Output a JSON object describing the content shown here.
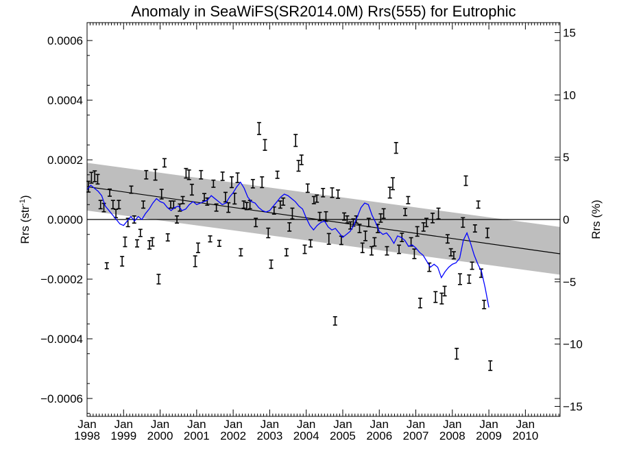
{
  "chart_data": {
    "type": "scatter",
    "title": "Anomaly in SeaWiFS(SR2014.0M) Rrs(555) for Eutrophic",
    "ylabel_left_main": "Rrs (str",
    "ylabel_left_sup": "-1",
    "ylabel_left_close": ")",
    "ylabel_right": "Rrs (%)",
    "xlim": [
      1998.0,
      2010.95
    ],
    "ylim": [
      -0.00066,
      0.00066
    ],
    "ylim_right": [
      -15.8,
      15.8
    ],
    "y_ticks": [
      {
        "value": 0.0006,
        "label": "0.0006"
      },
      {
        "value": 0.0004,
        "label": "0.0004"
      },
      {
        "value": 0.0002,
        "label": "0.0002"
      },
      {
        "value": 0.0,
        "label": "0.0000"
      },
      {
        "value": -0.0002,
        "label": "−0.0002"
      },
      {
        "value": -0.0004,
        "label": "−0.0004"
      },
      {
        "value": -0.0006,
        "label": "−0.0006"
      }
    ],
    "y_right_ticks": [
      {
        "value": 15,
        "label": "15"
      },
      {
        "value": 10,
        "label": "10"
      },
      {
        "value": 5,
        "label": "5"
      },
      {
        "value": 0,
        "label": "0"
      },
      {
        "value": -5,
        "label": "−5"
      },
      {
        "value": -10,
        "label": "−10"
      },
      {
        "value": -15,
        "label": "−15"
      }
    ],
    "x_ticks": [
      {
        "value": 1998,
        "month": "Jan",
        "year": "1998"
      },
      {
        "value": 1999,
        "month": "Jan",
        "year": "1999"
      },
      {
        "value": 2000,
        "month": "Jan",
        "year": "2000"
      },
      {
        "value": 2001,
        "month": "Jan",
        "year": "2001"
      },
      {
        "value": 2002,
        "month": "Jan",
        "year": "2002"
      },
      {
        "value": 2003,
        "month": "Jan",
        "year": "2003"
      },
      {
        "value": 2004,
        "month": "Jan",
        "year": "2004"
      },
      {
        "value": 2005,
        "month": "Jan",
        "year": "2005"
      },
      {
        "value": 2006,
        "month": "Jan",
        "year": "2006"
      },
      {
        "value": 2007,
        "month": "Jan",
        "year": "2007"
      },
      {
        "value": 2008,
        "month": "Jan",
        "year": "2008"
      },
      {
        "value": 2009,
        "month": "Jan",
        "year": "2009"
      },
      {
        "value": 2010,
        "month": "Jan",
        "year": "2010"
      }
    ],
    "reference_line": 0.0,
    "trend_line": {
      "x": [
        1998.0,
        2010.95
      ],
      "y": [
        0.00011,
        -0.000115
      ]
    },
    "confidence_band": {
      "x": [
        1998.0,
        2010.95
      ],
      "upper": [
        0.00019,
        -2.5e-05
      ],
      "lower": [
        3e-05,
        -0.000185
      ]
    },
    "points": [
      {
        "x": 1998.04,
        "y": 0.00011,
        "err": 1.8e-05
      },
      {
        "x": 1998.12,
        "y": 0.00014,
        "err": 1.8e-05
      },
      {
        "x": 1998.21,
        "y": 0.000145,
        "err": 1.8e-05
      },
      {
        "x": 1998.29,
        "y": 0.000135,
        "err": 1.6e-05
      },
      {
        "x": 1998.37,
        "y": 5e-05,
        "err": 1.4e-05
      },
      {
        "x": 1998.46,
        "y": 4e-05,
        "err": 1.4e-05
      },
      {
        "x": 1998.54,
        "y": -0.000155,
        "err": 1e-05
      },
      {
        "x": 1998.62,
        "y": 9e-05,
        "err": 1.2e-05
      },
      {
        "x": 1998.71,
        "y": 5e-05,
        "err": 1.4e-05
      },
      {
        "x": 1998.79,
        "y": 2e-05,
        "err": 1.4e-05
      },
      {
        "x": 1998.87,
        "y": 5e-05,
        "err": 1.4e-05
      },
      {
        "x": 1998.96,
        "y": -0.00014,
        "err": 1.6e-05
      },
      {
        "x": 1999.04,
        "y": -7.5e-05,
        "err": 1.6e-05
      },
      {
        "x": 1999.12,
        "y": -1e-05,
        "err": 1.4e-05
      },
      {
        "x": 1999.21,
        "y": 0.0001,
        "err": 1.2e-05
      },
      {
        "x": 1999.29,
        "y": 0.0,
        "err": 1.2e-05
      },
      {
        "x": 1999.37,
        "y": -8e-05,
        "err": 1.2e-05
      },
      {
        "x": 1999.46,
        "y": -4.5e-05,
        "err": 1.2e-05
      },
      {
        "x": 1999.54,
        "y": 5e-05,
        "err": 1.2e-05
      },
      {
        "x": 1999.62,
        "y": 0.00015,
        "err": 1.4e-05
      },
      {
        "x": 1999.71,
        "y": -8.5e-05,
        "err": 1.4e-05
      },
      {
        "x": 1999.79,
        "y": -7.5e-05,
        "err": 1.4e-05
      },
      {
        "x": 1999.87,
        "y": 0.00015,
        "err": 1.8e-05
      },
      {
        "x": 1999.96,
        "y": -0.0002,
        "err": 1.6e-05
      },
      {
        "x": 2000.04,
        "y": 8.5e-05,
        "err": 1.6e-05
      },
      {
        "x": 2000.12,
        "y": 0.00019,
        "err": 1.4e-05
      },
      {
        "x": 2000.21,
        "y": -6e-05,
        "err": 1.2e-05
      },
      {
        "x": 2000.29,
        "y": 5e-05,
        "err": 1.2e-05
      },
      {
        "x": 2000.37,
        "y": 5e-05,
        "err": 1.2e-05
      },
      {
        "x": 2000.46,
        "y": 0.0,
        "err": 1.2e-05
      },
      {
        "x": 2000.54,
        "y": 4e-05,
        "err": 1.2e-05
      },
      {
        "x": 2000.62,
        "y": 6.5e-05,
        "err": 1.2e-05
      },
      {
        "x": 2000.71,
        "y": 0.000155,
        "err": 1.6e-05
      },
      {
        "x": 2000.79,
        "y": 0.00015,
        "err": 1.6e-05
      },
      {
        "x": 2000.87,
        "y": 0.0001,
        "err": 1.8e-05
      },
      {
        "x": 2000.96,
        "y": -0.00014,
        "err": 1.8e-05
      },
      {
        "x": 2001.04,
        "y": -9.5e-05,
        "err": 1.6e-05
      },
      {
        "x": 2001.12,
        "y": 0.00015,
        "err": 1.4e-05
      },
      {
        "x": 2001.21,
        "y": 7.5e-05,
        "err": 1.2e-05
      },
      {
        "x": 2001.29,
        "y": 6e-05,
        "err": 1.2e-05
      },
      {
        "x": 2001.37,
        "y": -6.5e-05,
        "err": 1e-05
      },
      {
        "x": 2001.46,
        "y": 0.00012,
        "err": 1.2e-05
      },
      {
        "x": 2001.54,
        "y": 4e-05,
        "err": 1.2e-05
      },
      {
        "x": 2001.62,
        "y": -8e-05,
        "err": 1e-05
      },
      {
        "x": 2001.71,
        "y": 0.000145,
        "err": 1.4e-05
      },
      {
        "x": 2001.79,
        "y": 7.5e-05,
        "err": 1.6e-05
      },
      {
        "x": 2001.87,
        "y": 4e-05,
        "err": 1.6e-05
      },
      {
        "x": 2001.96,
        "y": 0.000125,
        "err": 1.8e-05
      },
      {
        "x": 2002.04,
        "y": 7e-05,
        "err": 1.8e-05
      },
      {
        "x": 2002.12,
        "y": 0.00014,
        "err": 1.6e-05
      },
      {
        "x": 2002.21,
        "y": -0.00011,
        "err": 1.2e-05
      },
      {
        "x": 2002.29,
        "y": 5e-05,
        "err": 1.2e-05
      },
      {
        "x": 2002.37,
        "y": 4.5e-05,
        "err": 1.2e-05
      },
      {
        "x": 2002.46,
        "y": 5e-05,
        "err": 1.4e-05
      },
      {
        "x": 2002.54,
        "y": 0.00012,
        "err": 1.4e-05
      },
      {
        "x": 2002.62,
        "y": -1e-05,
        "err": 1.4e-05
      },
      {
        "x": 2002.71,
        "y": 0.000305,
        "err": 2e-05
      },
      {
        "x": 2002.79,
        "y": 0.000125,
        "err": 1.8e-05
      },
      {
        "x": 2002.87,
        "y": 0.00025,
        "err": 1.8e-05
      },
      {
        "x": 2002.96,
        "y": -4.5e-05,
        "err": 1.6e-05
      },
      {
        "x": 2003.04,
        "y": -0.00015,
        "err": 1.4e-05
      },
      {
        "x": 2003.12,
        "y": 3e-05,
        "err": 1.2e-05
      },
      {
        "x": 2003.21,
        "y": 0.00015,
        "err": 1.2e-05
      },
      {
        "x": 2003.29,
        "y": 5e-05,
        "err": 1.2e-05
      },
      {
        "x": 2003.37,
        "y": 6e-05,
        "err": 1.2e-05
      },
      {
        "x": 2003.46,
        "y": -0.00011,
        "err": 1.2e-05
      },
      {
        "x": 2003.54,
        "y": -2.5e-05,
        "err": 1.4e-05
      },
      {
        "x": 2003.62,
        "y": 2e-05,
        "err": 1.8e-05
      },
      {
        "x": 2003.71,
        "y": 0.000265,
        "err": 2e-05
      },
      {
        "x": 2003.79,
        "y": 0.00018,
        "err": 1.8e-05
      },
      {
        "x": 2003.87,
        "y": 0.0002,
        "err": 1.6e-05
      },
      {
        "x": 2003.96,
        "y": -0.0001,
        "err": 1.4e-05
      },
      {
        "x": 2004.04,
        "y": 0.000105,
        "err": 1.4e-05
      },
      {
        "x": 2004.12,
        "y": -8e-05,
        "err": 1.2e-05
      },
      {
        "x": 2004.21,
        "y": 6.5e-05,
        "err": 1.2e-05
      },
      {
        "x": 2004.29,
        "y": 7e-05,
        "err": 1.2e-05
      },
      {
        "x": 2004.37,
        "y": 1e-05,
        "err": 1.4e-05
      },
      {
        "x": 2004.46,
        "y": 9e-05,
        "err": 1.4e-05
      },
      {
        "x": 2004.54,
        "y": 1e-05,
        "err": 1.6e-05
      },
      {
        "x": 2004.62,
        "y": -6.5e-05,
        "err": 1.8e-05
      },
      {
        "x": 2004.71,
        "y": 9e-05,
        "err": 1.6e-05
      },
      {
        "x": 2004.79,
        "y": -0.00034,
        "err": 1.4e-05
      },
      {
        "x": 2004.87,
        "y": 8.5e-05,
        "err": 1.4e-05
      },
      {
        "x": 2004.96,
        "y": -7e-05,
        "err": 1.4e-05
      },
      {
        "x": 2005.04,
        "y": 1e-05,
        "err": 1.2e-05
      },
      {
        "x": 2005.12,
        "y": 0.0,
        "err": 1.2e-05
      },
      {
        "x": 2005.21,
        "y": -2e-05,
        "err": 1.2e-05
      },
      {
        "x": 2005.29,
        "y": -1e-05,
        "err": 1.2e-05
      },
      {
        "x": 2005.37,
        "y": 0.0,
        "err": 1.2e-05
      },
      {
        "x": 2005.46,
        "y": -3e-05,
        "err": 1.4e-05
      },
      {
        "x": 2005.54,
        "y": -9.5e-05,
        "err": 1.6e-05
      },
      {
        "x": 2005.62,
        "y": -5.5e-05,
        "err": 1.6e-05
      },
      {
        "x": 2005.71,
        "y": -1e-05,
        "err": 1.4e-05
      },
      {
        "x": 2005.79,
        "y": -0.000105,
        "err": 1.4e-05
      },
      {
        "x": 2005.87,
        "y": -7.5e-05,
        "err": 1.4e-05
      },
      {
        "x": 2005.96,
        "y": -3e-05,
        "err": 1.4e-05
      },
      {
        "x": 2006.04,
        "y": 5e-06,
        "err": 1.4e-05
      },
      {
        "x": 2006.12,
        "y": 2e-05,
        "err": 1.6e-05
      },
      {
        "x": 2006.21,
        "y": -0.000105,
        "err": 1.4e-05
      },
      {
        "x": 2006.29,
        "y": 9e-05,
        "err": 1.8e-05
      },
      {
        "x": 2006.37,
        "y": 0.00012,
        "err": 2e-05
      },
      {
        "x": 2006.46,
        "y": 0.00024,
        "err": 1.8e-05
      },
      {
        "x": 2006.54,
        "y": -0.0001,
        "err": 1.4e-05
      },
      {
        "x": 2006.62,
        "y": -6e-05,
        "err": 1.4e-05
      },
      {
        "x": 2006.71,
        "y": 2.5e-05,
        "err": 1.2e-05
      },
      {
        "x": 2006.79,
        "y": 6.5e-05,
        "err": 1.2e-05
      },
      {
        "x": 2006.87,
        "y": -7.5e-05,
        "err": 1.4e-05
      },
      {
        "x": 2006.96,
        "y": -0.000115,
        "err": 1.6e-05
      },
      {
        "x": 2007.04,
        "y": -4e-05,
        "err": 1.6e-05
      },
      {
        "x": 2007.12,
        "y": -0.00028,
        "err": 1.6e-05
      },
      {
        "x": 2007.21,
        "y": -2.5e-05,
        "err": 1.4e-05
      },
      {
        "x": 2007.29,
        "y": -1e-05,
        "err": 1.4e-05
      },
      {
        "x": 2007.37,
        "y": -0.00016,
        "err": 1.4e-05
      },
      {
        "x": 2007.46,
        "y": 5e-06,
        "err": 1.6e-05
      },
      {
        "x": 2007.54,
        "y": -0.00026,
        "err": 1.8e-05
      },
      {
        "x": 2007.62,
        "y": 2e-05,
        "err": 1.8e-05
      },
      {
        "x": 2007.71,
        "y": -0.000265,
        "err": 1.8e-05
      },
      {
        "x": 2007.79,
        "y": -0.00024,
        "err": 1.6e-05
      },
      {
        "x": 2007.87,
        "y": -6.5e-05,
        "err": 1.4e-05
      },
      {
        "x": 2007.96,
        "y": -0.00011,
        "err": 1.2e-05
      },
      {
        "x": 2008.04,
        "y": -0.00012,
        "err": 1.2e-05
      },
      {
        "x": 2008.12,
        "y": -0.00045,
        "err": 1.8e-05
      },
      {
        "x": 2008.21,
        "y": -0.0002,
        "err": 1.8e-05
      },
      {
        "x": 2008.29,
        "y": -1e-05,
        "err": 1.6e-05
      },
      {
        "x": 2008.37,
        "y": 0.00013,
        "err": 1.6e-05
      },
      {
        "x": 2008.46,
        "y": -0.0002,
        "err": 1.4e-05
      },
      {
        "x": 2008.54,
        "y": -0.000155,
        "err": 1.2e-05
      },
      {
        "x": 2008.62,
        "y": -3e-05,
        "err": 1.2e-05
      },
      {
        "x": 2008.71,
        "y": 5e-05,
        "err": 1.2e-05
      },
      {
        "x": 2008.79,
        "y": -0.00018,
        "err": 1.4e-05
      },
      {
        "x": 2008.87,
        "y": -0.000285,
        "err": 1.4e-05
      },
      {
        "x": 2008.96,
        "y": -4.5e-05,
        "err": 1.6e-05
      },
      {
        "x": 2009.04,
        "y": -0.00049,
        "err": 1.6e-05
      }
    ],
    "running_mean": {
      "x": [
        1998.0,
        1998.1,
        1998.2,
        1998.3,
        1998.4,
        1998.5,
        1998.6,
        1998.7,
        1998.8,
        1998.9,
        1999.0,
        1999.1,
        1999.2,
        1999.3,
        1999.4,
        1999.5,
        1999.6,
        1999.7,
        1999.8,
        1999.9,
        2000.0,
        2000.1,
        2000.2,
        2000.3,
        2000.4,
        2000.5,
        2000.6,
        2000.7,
        2000.8,
        2000.9,
        2001.0,
        2001.1,
        2001.2,
        2001.3,
        2001.4,
        2001.5,
        2001.6,
        2001.7,
        2001.8,
        2001.9,
        2002.0,
        2002.1,
        2002.2,
        2002.3,
        2002.4,
        2002.5,
        2002.6,
        2002.7,
        2002.8,
        2002.9,
        2003.0,
        2003.1,
        2003.2,
        2003.3,
        2003.4,
        2003.5,
        2003.6,
        2003.7,
        2003.8,
        2003.9,
        2004.0,
        2004.1,
        2004.2,
        2004.3,
        2004.4,
        2004.5,
        2004.6,
        2004.7,
        2004.8,
        2004.9,
        2005.0,
        2005.1,
        2005.2,
        2005.3,
        2005.4,
        2005.5,
        2005.6,
        2005.7,
        2005.8,
        2005.9,
        2006.0,
        2006.1,
        2006.2,
        2006.3,
        2006.4,
        2006.5,
        2006.6,
        2006.7,
        2006.8,
        2006.9,
        2007.0,
        2007.1,
        2007.2,
        2007.3,
        2007.4,
        2007.5,
        2007.6,
        2007.7,
        2007.8,
        2007.9,
        2008.0,
        2008.1,
        2008.2,
        2008.3,
        2008.4,
        2008.5,
        2008.6,
        2008.7,
        2008.8,
        2008.9,
        2009.0
      ],
      "y": [
        0.0001,
        0.000115,
        0.000105,
        9.5e-05,
        8e-05,
        4.5e-05,
        3e-05,
        1.5e-05,
        0.0,
        -1.5e-05,
        -2e-05,
        -5e-06,
        1e-05,
        -5e-06,
        1e-05,
        0.0,
        2e-05,
        3.5e-05,
        5.5e-05,
        7e-05,
        6e-05,
        5.5e-05,
        4e-05,
        3e-05,
        4e-05,
        4.5e-05,
        3e-05,
        3.5e-05,
        5e-05,
        6e-05,
        5e-05,
        5.5e-05,
        6e-05,
        6.5e-05,
        8e-05,
        7e-05,
        6e-05,
        5e-05,
        5.5e-05,
        7.5e-05,
        9e-05,
        0.00011,
        0.000125,
        0.000105,
        7.5e-05,
        6e-05,
        5.5e-05,
        4e-05,
        3e-05,
        2.5e-05,
        3e-05,
        4.5e-05,
        6e-05,
        7.5e-05,
        8.5e-05,
        8e-05,
        7e-05,
        6e-05,
        4.5e-05,
        3.5e-05,
        5e-06,
        -2e-05,
        -3.5e-05,
        -2e-05,
        -1e-05,
        -5e-06,
        -2.5e-05,
        -3.5e-05,
        -3e-05,
        -4.5e-05,
        -6e-05,
        -5e-05,
        -4e-05,
        -2e-05,
        1e-05,
        4e-05,
        5.5e-05,
        5e-05,
        1.5e-05,
        -1e-05,
        -4e-05,
        -5e-05,
        -4.5e-05,
        -6e-05,
        -8e-05,
        -5.5e-05,
        -6e-05,
        -7e-05,
        -9e-05,
        -8.5e-05,
        -9.5e-05,
        -0.00011,
        -0.00012,
        -0.00014,
        -0.00016,
        -0.00015,
        -0.00016,
        -0.000195,
        -0.000175,
        -0.00016,
        -0.00015,
        -0.000145,
        -0.00013,
        -7e-05,
        -4.5e-05,
        -8e-05,
        -0.00012,
        -0.00015,
        -0.000175,
        -0.00023,
        -0.000295
      ]
    }
  }
}
